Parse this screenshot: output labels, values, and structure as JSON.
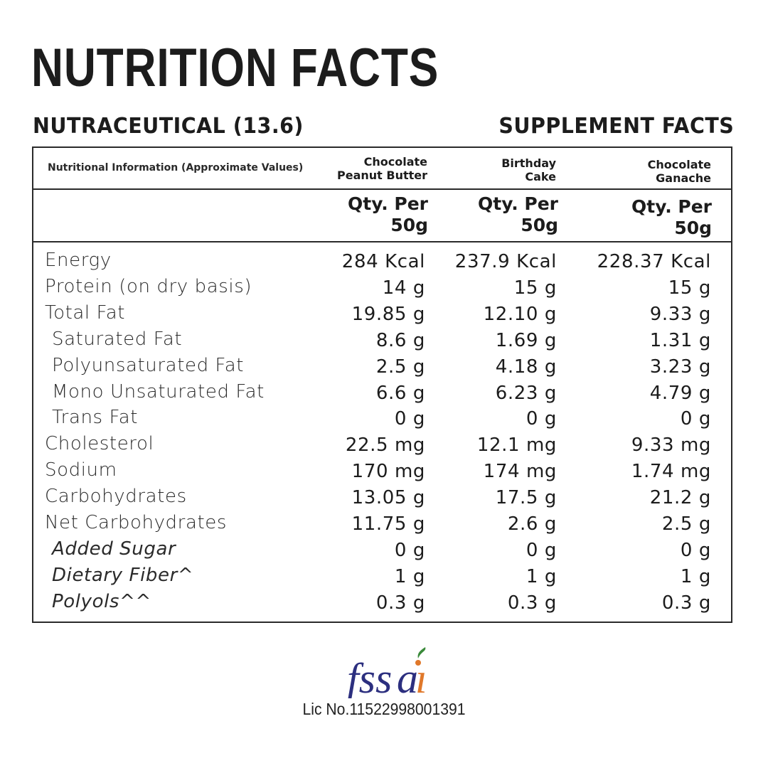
{
  "header": {
    "title": "NUTRITION FACTS",
    "subtitle_left": "NUTRACEUTICAL (13.6)",
    "subtitle_right": "SUPPLEMENT FACTS"
  },
  "table": {
    "info_header": "Nutritional Information (Approximate Values)",
    "columns": [
      {
        "name": "Chocolate\nPeanut Butter",
        "qty": "Qty. Per\n50g"
      },
      {
        "name": "Birthday\nCake",
        "qty": "Qty. Per\n50g"
      },
      {
        "name": "Chocolate\nGanache",
        "qty": "Qty. Per\n50g"
      }
    ],
    "rows": [
      {
        "label": "Energy",
        "values": [
          "284 Kcal",
          "237.9 Kcal",
          "228.37 Kcal"
        ],
        "style": "normal"
      },
      {
        "label": "Protein (on dry basis)",
        "values": [
          "14 g",
          "15 g",
          "15 g"
        ],
        "style": "normal"
      },
      {
        "label": "Total Fat",
        "values": [
          "19.85 g",
          "12.10 g",
          "9.33 g"
        ],
        "style": "normal"
      },
      {
        "label": "Saturated Fat",
        "values": [
          "8.6 g",
          "1.69 g",
          "1.31 g"
        ],
        "style": "indent"
      },
      {
        "label": "Polyunsaturated Fat",
        "values": [
          "2.5 g",
          "4.18 g",
          "3.23 g"
        ],
        "style": "indent"
      },
      {
        "label": "Mono Unsaturated Fat",
        "values": [
          "6.6 g",
          "6.23 g",
          "4.79 g"
        ],
        "style": "indent"
      },
      {
        "label": "Trans Fat",
        "values": [
          "0 g",
          "0 g",
          "0 g"
        ],
        "style": "indent"
      },
      {
        "label": "Cholesterol",
        "values": [
          "22.5 mg",
          "12.1 mg",
          "9.33 mg"
        ],
        "style": "normal"
      },
      {
        "label": "Sodium",
        "values": [
          "170 mg",
          "174 mg",
          "1.74 mg"
        ],
        "style": "normal"
      },
      {
        "label": "Carbohydrates",
        "values": [
          "13.05 g",
          "17.5 g",
          "21.2 g"
        ],
        "style": "normal"
      },
      {
        "label": "Net Carbohydrates",
        "values": [
          "11.75 g",
          "2.6 g",
          "2.5 g"
        ],
        "style": "normal"
      },
      {
        "label": "Added Sugar",
        "values": [
          "0 g",
          "0 g",
          "0 g"
        ],
        "style": "italic"
      },
      {
        "label": "Dietary Fiber^",
        "values": [
          "1 g",
          "1 g",
          "1 g"
        ],
        "style": "italic"
      },
      {
        "label": "Polyols^^",
        "values": [
          "0.3 g",
          "0.3 g",
          "0.3 g"
        ],
        "style": "italic"
      }
    ]
  },
  "footer": {
    "logo_text": "fssai",
    "logo_icon": "fssai-logo-icon",
    "license": "Lic No.11522998001391",
    "colors": {
      "logo_blue": "#2c2f7f",
      "logo_orange": "#e0782a",
      "logo_leaf": "#3a8a3a"
    }
  }
}
